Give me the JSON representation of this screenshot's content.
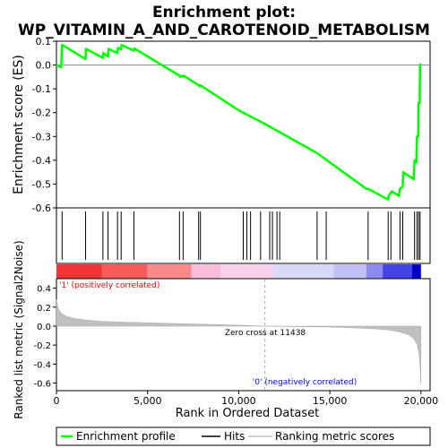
{
  "chart_data": {
    "type": "line",
    "title_line1": "Enrichment plot:",
    "title_line2": "WP_VITAMIN_A_AND_CAROTENOID_METABOLISM",
    "top_panel": {
      "ylabel": "Enrichment score (ES)",
      "ylim": [
        -0.6,
        0.1
      ],
      "yticks": [
        0.1,
        0.0,
        -0.1,
        -0.2,
        -0.3,
        -0.4,
        -0.5,
        -0.6
      ],
      "ytick_labels": [
        "0.1",
        "0.0",
        "-0.1",
        "-0.2",
        "-0.3",
        "-0.4",
        "-0.5",
        "-0.6"
      ],
      "line_color": "#00ff00",
      "es_curve": [
        [
          0,
          0.0
        ],
        [
          260,
          -0.01
        ],
        [
          310,
          0.085
        ],
        [
          1600,
          0.025
        ],
        [
          1620,
          0.068
        ],
        [
          2550,
          0.03
        ],
        [
          2570,
          0.05
        ],
        [
          2830,
          0.035
        ],
        [
          2850,
          0.068
        ],
        [
          3350,
          0.05
        ],
        [
          3370,
          0.072
        ],
        [
          3550,
          0.065
        ],
        [
          3570,
          0.085
        ],
        [
          4250,
          0.06
        ],
        [
          4270,
          0.07
        ],
        [
          6750,
          -0.045
        ],
        [
          6800,
          -0.05
        ],
        [
          6950,
          -0.045
        ],
        [
          7100,
          -0.05
        ],
        [
          7800,
          -0.085
        ],
        [
          7850,
          -0.09
        ],
        [
          7900,
          -0.085
        ],
        [
          10000,
          -0.19
        ],
        [
          11500,
          -0.25
        ],
        [
          14300,
          -0.37
        ],
        [
          17000,
          -0.52
        ],
        [
          17100,
          -0.52
        ],
        [
          18200,
          -0.565
        ],
        [
          18230,
          -0.55
        ],
        [
          18400,
          -0.53
        ],
        [
          18800,
          -0.55
        ],
        [
          18850,
          -0.52
        ],
        [
          19000,
          -0.51
        ],
        [
          19030,
          -0.45
        ],
        [
          19600,
          -0.48
        ],
        [
          19650,
          -0.4
        ],
        [
          19750,
          -0.41
        ],
        [
          19780,
          -0.3
        ],
        [
          19850,
          -0.3
        ],
        [
          19870,
          -0.16
        ],
        [
          19930,
          -0.16
        ],
        [
          19950,
          0.0
        ],
        [
          20000,
          0.005
        ]
      ]
    },
    "hits": [
      310,
      1600,
      2550,
      2830,
      3350,
      3550,
      4250,
      6750,
      6950,
      7800,
      7900,
      10250,
      10450,
      10650,
      11200,
      11700,
      11850,
      12100,
      12250,
      14300,
      14800,
      17100,
      18200,
      18350,
      18850,
      19000,
      19650,
      19780,
      19870,
      19950
    ],
    "bottom_panel": {
      "ylabel": "Ranked list metric (Signal2Noise)",
      "ylim": [
        -0.68,
        0.5
      ],
      "yticks": [
        0.4,
        0.2,
        0.0,
        -0.2,
        -0.4,
        -0.6
      ],
      "ytick_labels": [
        "0.4",
        "0.2",
        "0.0",
        "-0.2",
        "-0.4",
        "-0.6"
      ],
      "metric_curve": [
        [
          0,
          0.28
        ],
        [
          100,
          0.18
        ],
        [
          300,
          0.13
        ],
        [
          600,
          0.1
        ],
        [
          1000,
          0.08
        ],
        [
          1600,
          0.065
        ],
        [
          2500,
          0.05
        ],
        [
          4000,
          0.04
        ],
        [
          6000,
          0.03
        ],
        [
          8000,
          0.02
        ],
        [
          10000,
          0.01
        ],
        [
          11438,
          0.0
        ],
        [
          13000,
          -0.005
        ],
        [
          15000,
          -0.01
        ],
        [
          16500,
          -0.02
        ],
        [
          17500,
          -0.03
        ],
        [
          18200,
          -0.04
        ],
        [
          18800,
          -0.06
        ],
        [
          19300,
          -0.09
        ],
        [
          19600,
          -0.13
        ],
        [
          19800,
          -0.2
        ],
        [
          19900,
          -0.3
        ],
        [
          19960,
          -0.45
        ],
        [
          20000,
          -0.62
        ]
      ],
      "fill_color": "#c0c0c0",
      "zero_cross_label": "Zero cross at 11438",
      "zero_cross": 11438,
      "pos_label": "'1' (positively correlated)",
      "neg_label": "'0' (negatively correlated)",
      "pos_color": "#ff0000",
      "neg_color": "#0000ff"
    },
    "heat_strip": [
      {
        "from": 0,
        "to": 2500,
        "color": "#f03333"
      },
      {
        "from": 2500,
        "to": 5000,
        "color": "#f55b5b"
      },
      {
        "from": 5000,
        "to": 7400,
        "color": "#fa8a8a"
      },
      {
        "from": 7400,
        "to": 9000,
        "color": "#fcbcdc"
      },
      {
        "from": 9000,
        "to": 11900,
        "color": "#fad0ea"
      },
      {
        "from": 11900,
        "to": 15200,
        "color": "#d8d8f8"
      },
      {
        "from": 15200,
        "to": 17000,
        "color": "#c0c0f4"
      },
      {
        "from": 17000,
        "to": 17900,
        "color": "#8c8cee"
      },
      {
        "from": 17900,
        "to": 19500,
        "color": "#4444e6"
      },
      {
        "from": 19500,
        "to": 20000,
        "color": "#0000c8"
      }
    ],
    "x_axis": {
      "label": "Rank in Ordered Dataset",
      "xlim": [
        0,
        20500
      ],
      "ticks": [
        0,
        5000,
        10000,
        15000,
        20000
      ],
      "tick_labels": [
        "0",
        "5,000",
        "10,000",
        "15,000",
        "20,000"
      ]
    },
    "legend": {
      "placement": "bottom",
      "items": [
        {
          "label": "Enrichment profile",
          "color": "#00ff00"
        },
        {
          "label": "Hits",
          "color": "#000000"
        },
        {
          "label": "Ranking metric scores",
          "color": "#c0c0c0"
        }
      ]
    }
  }
}
